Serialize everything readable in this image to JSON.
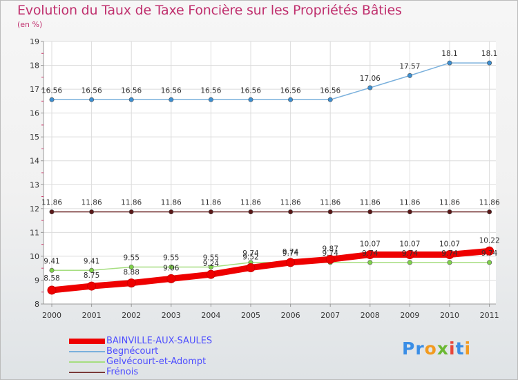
{
  "title": "Evolution du Taux de Taxe Foncière sur les Propriétés Bâties",
  "subtitle": "(en %)",
  "logo": {
    "letters": [
      "P",
      "r",
      "o",
      "x",
      "i",
      "t",
      "i"
    ],
    "colors": [
      "#3a8ee6",
      "#3a8ee6",
      "#f29a1f",
      "#6ab832",
      "#e8463a",
      "#3a8ee6",
      "#f29a1f"
    ]
  },
  "chart_data": {
    "type": "line",
    "title": "Evolution du Taux de Taxe Foncière sur les Propriétés Bâties",
    "ylabel": "(en %)",
    "xlabel": "",
    "x": [
      "2000",
      "2001",
      "2002",
      "2003",
      "2004",
      "2005",
      "2006",
      "2007",
      "2008",
      "2009",
      "2010",
      "2011"
    ],
    "ylim": [
      8,
      19
    ],
    "yticks": [
      "8",
      "9",
      "10",
      "11",
      "12",
      "13",
      "14",
      "15",
      "16",
      "17",
      "18",
      "19"
    ],
    "series": [
      {
        "name": "BAINVILLE-AUX-SAULES",
        "color": "#ee0000",
        "marker_color": "#ee0000",
        "values": [
          8.58,
          8.75,
          8.88,
          9.06,
          9.24,
          9.52,
          9.74,
          9.87,
          10.07,
          10.07,
          10.07,
          10.22
        ],
        "labels": [
          "8.58",
          "8.75",
          "8.88",
          "9.06",
          "9.24",
          "9.52",
          "9.74",
          "9.87",
          "10.07",
          "10.07",
          "10.07",
          "10.22"
        ]
      },
      {
        "name": "Begnécourt",
        "color": "#7ab0dc",
        "marker_color": "#3d8fd1",
        "values": [
          16.56,
          16.56,
          16.56,
          16.56,
          16.56,
          16.56,
          16.56,
          16.56,
          17.06,
          17.57,
          18.1,
          18.1
        ],
        "labels": [
          "16.56",
          "16.56",
          "16.56",
          "16.56",
          "16.56",
          "16.56",
          "16.56",
          "16.56",
          "17.06",
          "17.57",
          "18.1",
          "18.1"
        ]
      },
      {
        "name": "Gelvécourt-et-Adompt",
        "color": "#a6de80",
        "marker_color": "#7fd14a",
        "values": [
          9.41,
          9.41,
          9.55,
          9.55,
          9.55,
          9.74,
          9.74,
          9.74,
          9.74,
          9.74,
          9.74,
          9.74
        ],
        "labels": [
          "9.41",
          "9.41",
          "9.55",
          "9.55",
          "9.55",
          "9.74",
          "9.74",
          "9.74",
          "9.74",
          "9.74",
          "9.74",
          "9.74"
        ]
      },
      {
        "name": "Frénois",
        "color": "#7a3a3a",
        "marker_color": "#5a1818",
        "values": [
          11.86,
          11.86,
          11.86,
          11.86,
          11.86,
          11.86,
          11.86,
          11.86,
          11.86,
          11.86,
          11.86,
          11.86
        ],
        "labels": [
          "11.86",
          "11.86",
          "11.86",
          "11.86",
          "11.86",
          "11.86",
          "11.86",
          "11.86",
          "11.86",
          "11.86",
          "11.86",
          "11.86"
        ]
      }
    ],
    "legend_position": "bottom-left"
  }
}
